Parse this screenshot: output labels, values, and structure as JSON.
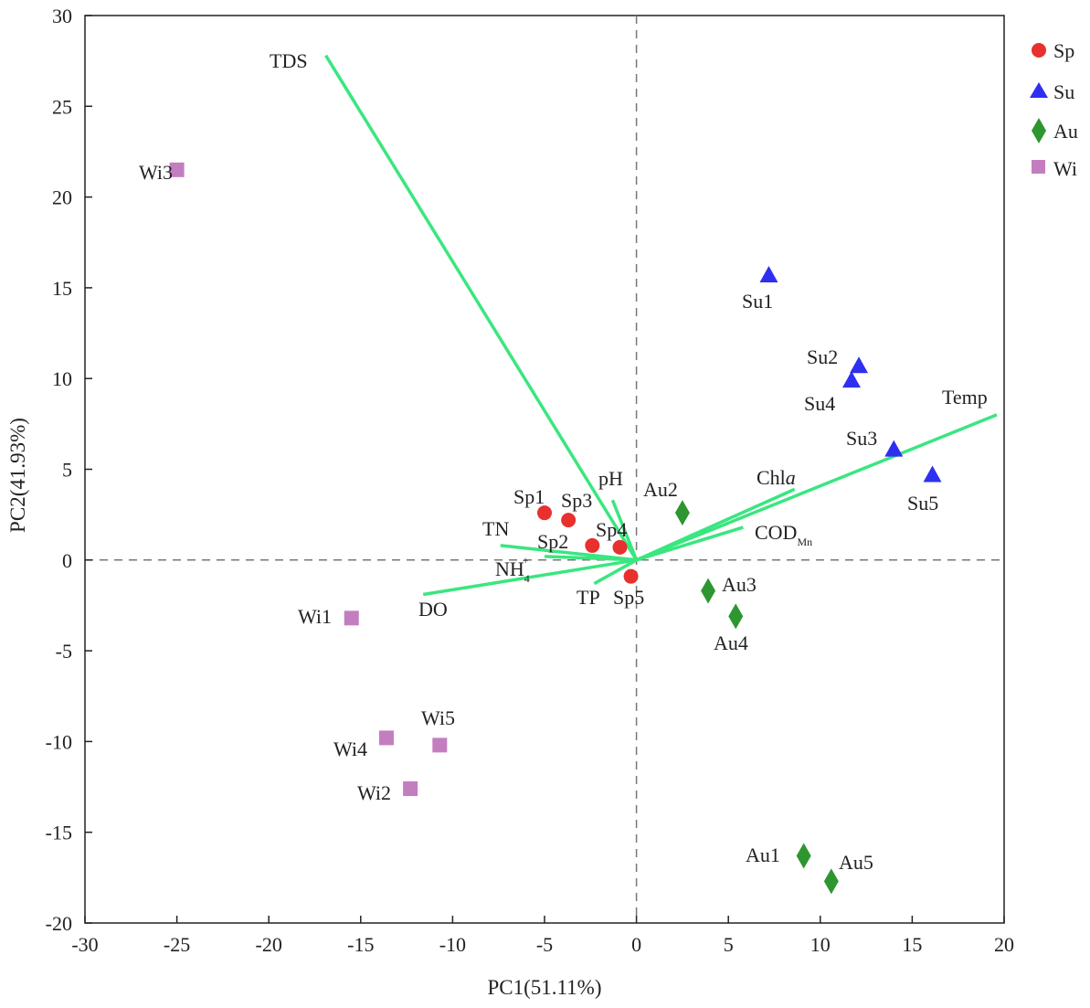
{
  "chart_data": {
    "type": "scatter",
    "title": "",
    "xlabel": "PC1(51.11%)",
    "ylabel": "PC2(41.93%)",
    "xlim": [
      -30,
      20
    ],
    "ylim": [
      -20,
      30
    ],
    "xticks": [
      "-30",
      "-25",
      "-20",
      "-15",
      "-10",
      "-5",
      "0",
      "5",
      "10",
      "15",
      "20"
    ],
    "yticks": [
      "-20",
      "-15",
      "-10",
      "-5",
      "0",
      "5",
      "10",
      "15",
      "20",
      "25",
      "30"
    ],
    "grid": false,
    "reference_lines": {
      "x": 0,
      "y": 0,
      "style": "dashed"
    },
    "legend": {
      "position": "right-top"
    },
    "series": [
      {
        "name": "Sp",
        "marker": "circle",
        "color": "#e8302e",
        "points": [
          {
            "label": "Sp1",
            "x": -5.0,
            "y": 2.6
          },
          {
            "label": "Sp2",
            "x": -2.4,
            "y": 0.8
          },
          {
            "label": "Sp3",
            "x": -3.7,
            "y": 2.2
          },
          {
            "label": "Sp4",
            "x": -0.9,
            "y": 0.7
          },
          {
            "label": "Sp5",
            "x": -0.3,
            "y": -0.9
          }
        ]
      },
      {
        "name": "Su",
        "marker": "triangle",
        "color": "#2f2ff2",
        "points": [
          {
            "label": "Su1",
            "x": 7.2,
            "y": 15.7
          },
          {
            "label": "Su2",
            "x": 12.1,
            "y": 10.7
          },
          {
            "label": "Su3",
            "x": 14.0,
            "y": 6.1
          },
          {
            "label": "Su4",
            "x": 11.7,
            "y": 9.9
          },
          {
            "label": "Su5",
            "x": 16.1,
            "y": 4.7
          }
        ]
      },
      {
        "name": "Au",
        "marker": "diamond",
        "color": "#2e9630",
        "points": [
          {
            "label": "Au1",
            "x": 9.1,
            "y": -16.3
          },
          {
            "label": "Au2",
            "x": 2.5,
            "y": 2.6
          },
          {
            "label": "Au3",
            "x": 3.9,
            "y": -1.7
          },
          {
            "label": "Au4",
            "x": 5.4,
            "y": -3.1
          },
          {
            "label": "Au5",
            "x": 10.6,
            "y": -17.7
          }
        ]
      },
      {
        "name": "Wi",
        "marker": "square",
        "color": "#c37ec0",
        "points": [
          {
            "label": "Wi1",
            "x": -15.5,
            "y": -3.2
          },
          {
            "label": "Wi2",
            "x": -12.3,
            "y": -12.6
          },
          {
            "label": "Wi3",
            "x": -25.0,
            "y": 21.5
          },
          {
            "label": "Wi4",
            "x": -13.6,
            "y": -9.8
          },
          {
            "label": "Wi5",
            "x": -10.7,
            "y": -10.2
          }
        ]
      }
    ],
    "vectors": {
      "color": "#3ae67f",
      "items": [
        {
          "label": "TDS",
          "x": -16.9,
          "y": 27.8
        },
        {
          "label": "Temp",
          "x": 19.6,
          "y": 8.0
        },
        {
          "label": "Chla",
          "x": 8.6,
          "y": 3.9
        },
        {
          "label": "CODMn",
          "x": 5.8,
          "y": 1.8
        },
        {
          "label": "pH",
          "x": -1.3,
          "y": 3.3
        },
        {
          "label": "TN",
          "x": -7.4,
          "y": 0.8
        },
        {
          "label": "NH4+",
          "x": -5.0,
          "y": 0.2
        },
        {
          "label": "DO",
          "x": -11.6,
          "y": -1.9
        },
        {
          "label": "TP",
          "x": -2.3,
          "y": -1.3
        }
      ],
      "text": {
        "TDS": "TDS",
        "Temp": "Temp",
        "Chl": "Chl",
        "Chl_italic": "a",
        "COD": "COD",
        "COD_sub": "Mn",
        "pH": "pH",
        "TN": "TN",
        "NH": "NH",
        "NH_sub": "4",
        "NH_sup": "+",
        "DO": "DO",
        "TP": "TP"
      }
    }
  }
}
